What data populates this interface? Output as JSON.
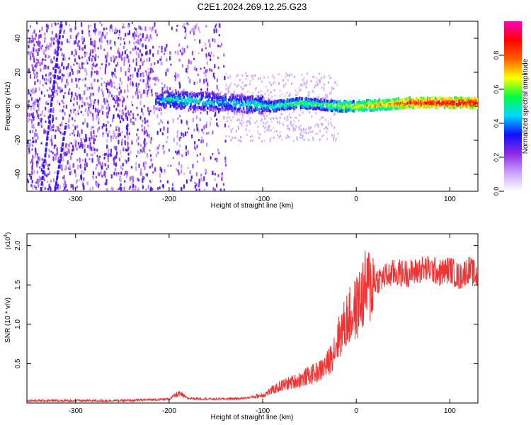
{
  "title": "C2E1.2024.269.12.25.G23",
  "chart_data": [
    {
      "type": "heatmap",
      "xlabel": "Height of straight line (km)",
      "ylabel": "Frequency (Hz)",
      "xlim": [
        -352,
        130
      ],
      "ylim": [
        -50,
        50
      ],
      "xticks": [
        -300,
        -200,
        -100,
        0,
        100
      ],
      "yticks": [
        -40,
        -20,
        0,
        20,
        40
      ],
      "colorbar": {
        "label": "Normalized spectral amplitude",
        "range": [
          0,
          1
        ],
        "ticks": [
          0.0,
          0.2,
          0.4,
          0.6,
          0.8
        ],
        "colors": [
          "#ffffff",
          "#c9a0ff",
          "#8a2be2",
          "#1010ff",
          "#00d8ff",
          "#00ff40",
          "#ffff00",
          "#ff6000",
          "#ff0000",
          "#ff00c0"
        ]
      },
      "ridge": [
        {
          "x": -215,
          "f": 3,
          "a": 0.4
        },
        {
          "x": -200,
          "f": 4,
          "a": 0.5
        },
        {
          "x": -170,
          "f": 3,
          "a": 0.5
        },
        {
          "x": -140,
          "f": 2,
          "a": 0.45
        },
        {
          "x": -110,
          "f": 1,
          "a": 0.5
        },
        {
          "x": -90,
          "f": 0,
          "a": 0.55
        },
        {
          "x": -60,
          "f": 2,
          "a": 0.6
        },
        {
          "x": -40,
          "f": 1,
          "a": 0.55
        },
        {
          "x": -20,
          "f": 0,
          "a": 0.65
        },
        {
          "x": 0,
          "f": 0,
          "a": 0.7
        },
        {
          "x": 30,
          "f": 1,
          "a": 0.75
        },
        {
          "x": 55,
          "f": 2,
          "a": 0.85
        },
        {
          "x": 90,
          "f": 2,
          "a": 0.9
        },
        {
          "x": 130,
          "f": 2,
          "a": 0.9
        }
      ],
      "noise_region_x": [
        -352,
        -140
      ],
      "streaks": [
        {
          "x1": -337,
          "f1": -50,
          "x2": -315,
          "f2": 50
        },
        {
          "x1": -322,
          "f1": -50,
          "x2": -310,
          "f2": -10
        }
      ]
    },
    {
      "type": "line",
      "xlabel": "Height of straight line (km)",
      "ylabel": "SNR (10 * v/v)",
      "yexponent": "(x10",
      "yexponent_power": "4",
      "exponent_close": ")",
      "xlim": [
        -352,
        130
      ],
      "ylim": [
        0,
        2.15
      ],
      "xticks": [
        -300,
        -200,
        -100,
        0,
        100
      ],
      "yticks": [
        0.5,
        1.0,
        1.5,
        2.0
      ],
      "color": "#ee3333",
      "series": [
        {
          "x": [
            -352,
            -250,
            -200,
            -190,
            -180,
            -150,
            -120,
            -100,
            -80,
            -60,
            -40,
            -30,
            -20,
            -10,
            0,
            10,
            20,
            30,
            40,
            50,
            60,
            70,
            80,
            90,
            100,
            110,
            120,
            130
          ],
          "y": [
            0.03,
            0.03,
            0.05,
            0.12,
            0.06,
            0.05,
            0.06,
            0.1,
            0.22,
            0.3,
            0.4,
            0.5,
            0.8,
            1.05,
            1.2,
            1.45,
            1.55,
            1.6,
            1.65,
            1.65,
            1.65,
            1.7,
            1.7,
            1.65,
            1.7,
            1.6,
            1.7,
            1.6
          ]
        }
      ]
    }
  ]
}
